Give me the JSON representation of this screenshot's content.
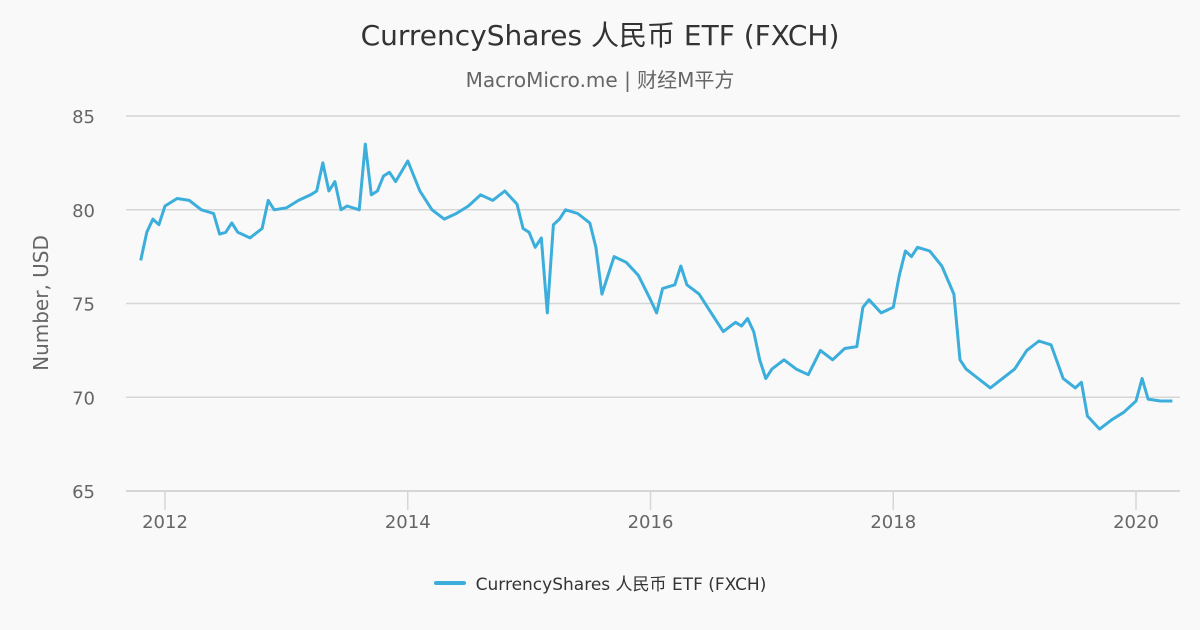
{
  "header": {
    "title": "CurrencyShares 人民币 ETF (FXCH)",
    "subtitle": "MacroMicro.me | 财经M平方"
  },
  "legend": {
    "items": [
      {
        "label": "CurrencyShares 人民币 ETF (FXCH)",
        "color": "#3caedb"
      }
    ]
  },
  "chart_data": {
    "type": "line",
    "title": "CurrencyShares 人民币 ETF (FXCH)",
    "subtitle": "MacroMicro.me | 财经M平方",
    "xlabel": "",
    "ylabel": "Number, USD",
    "ylim": [
      65,
      85
    ],
    "yticks": [
      65,
      70,
      75,
      80,
      85
    ],
    "xticks": [
      "2012",
      "2014",
      "2016",
      "2018",
      "2020"
    ],
    "xlim": [
      2011.75,
      2020.4
    ],
    "grid": true,
    "legend_position": "bottom",
    "series": [
      {
        "name": "CurrencyShares 人民币 ETF (FXCH)",
        "color": "#3caedb",
        "x": [
          2011.8,
          2011.85,
          2011.9,
          2011.95,
          2012.0,
          2012.1,
          2012.2,
          2012.3,
          2012.4,
          2012.45,
          2012.5,
          2012.55,
          2012.6,
          2012.7,
          2012.8,
          2012.85,
          2012.9,
          2013.0,
          2013.1,
          2013.2,
          2013.25,
          2013.3,
          2013.35,
          2013.4,
          2013.45,
          2013.5,
          2013.6,
          2013.65,
          2013.7,
          2013.75,
          2013.8,
          2013.85,
          2013.9,
          2014.0,
          2014.1,
          2014.2,
          2014.3,
          2014.4,
          2014.5,
          2014.6,
          2014.7,
          2014.8,
          2014.9,
          2014.95,
          2015.0,
          2015.05,
          2015.1,
          2015.15,
          2015.2,
          2015.25,
          2015.3,
          2015.4,
          2015.5,
          2015.55,
          2015.6,
          2015.65,
          2015.7,
          2015.8,
          2015.9,
          2016.0,
          2016.05,
          2016.1,
          2016.2,
          2016.25,
          2016.3,
          2016.4,
          2016.5,
          2016.6,
          2016.7,
          2016.75,
          2016.8,
          2016.85,
          2016.9,
          2016.95,
          2017.0,
          2017.1,
          2017.2,
          2017.3,
          2017.4,
          2017.5,
          2017.6,
          2017.7,
          2017.75,
          2017.8,
          2017.9,
          2018.0,
          2018.05,
          2018.1,
          2018.15,
          2018.2,
          2018.3,
          2018.4,
          2018.5,
          2018.55,
          2018.6,
          2018.7,
          2018.8,
          2018.9,
          2019.0,
          2019.1,
          2019.2,
          2019.3,
          2019.4,
          2019.5,
          2019.55,
          2019.6,
          2019.7,
          2019.8,
          2019.9,
          2020.0,
          2020.05,
          2020.1,
          2020.2,
          2020.3
        ],
        "values": [
          77.3,
          78.8,
          79.5,
          79.2,
          80.2,
          80.6,
          80.5,
          80.0,
          79.8,
          78.7,
          78.8,
          79.3,
          78.8,
          78.5,
          79.0,
          80.5,
          80.0,
          80.1,
          80.5,
          80.8,
          81.0,
          82.5,
          81.0,
          81.5,
          80.0,
          80.2,
          80.0,
          83.5,
          80.8,
          81.0,
          81.8,
          82.0,
          81.5,
          82.6,
          81.0,
          80.0,
          79.5,
          79.8,
          80.2,
          80.8,
          80.5,
          81.0,
          80.3,
          79.0,
          78.8,
          78.0,
          78.5,
          74.5,
          79.2,
          79.5,
          80.0,
          79.8,
          79.3,
          78.0,
          75.5,
          76.5,
          77.5,
          77.2,
          76.5,
          75.2,
          74.5,
          75.8,
          76.0,
          77.0,
          76.0,
          75.5,
          74.5,
          73.5,
          74.0,
          73.8,
          74.2,
          73.5,
          72.0,
          71.0,
          71.5,
          72.0,
          71.5,
          71.2,
          72.5,
          72.0,
          72.6,
          72.7,
          74.8,
          75.2,
          74.5,
          74.8,
          76.5,
          77.8,
          77.5,
          78.0,
          77.8,
          77.0,
          75.5,
          72.0,
          71.5,
          71.0,
          70.5,
          71.0,
          71.5,
          72.5,
          73.0,
          72.8,
          71.0,
          70.5,
          70.8,
          69.0,
          68.3,
          68.8,
          69.2,
          69.8,
          71.0,
          69.9,
          69.8,
          69.8
        ]
      }
    ]
  }
}
